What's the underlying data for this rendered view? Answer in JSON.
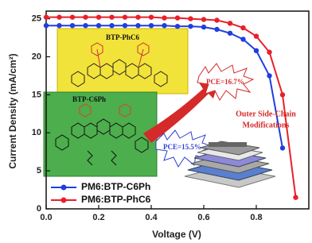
{
  "chart_data": {
    "type": "line",
    "x_label": "Voltage (V)",
    "y_label": "Current Density (mA/cm²)",
    "x": [
      0,
      0.05,
      0.1,
      0.15,
      0.2,
      0.25,
      0.3,
      0.35,
      0.4,
      0.45,
      0.5,
      0.55,
      0.6,
      0.65,
      0.7,
      0.75,
      0.8,
      0.85,
      0.9,
      0.95
    ],
    "series": [
      {
        "name": "PM6:BTP-C6Ph",
        "color": "#1f3fe0",
        "values": [
          24.1,
          24.1,
          24.1,
          24.1,
          24.1,
          24.1,
          24.1,
          24.1,
          24.1,
          24.1,
          24.0,
          24.0,
          23.9,
          23.6,
          23.1,
          22.3,
          20.8,
          17.5,
          8,
          null
        ]
      },
      {
        "name": "PM6:BTP-PhC6",
        "color": "#e8202a",
        "values": [
          25.2,
          25.2,
          25.2,
          25.2,
          25.2,
          25.2,
          25.2,
          25.2,
          25.2,
          25.1,
          25.1,
          25.0,
          24.9,
          24.8,
          24.4,
          23.8,
          22.7,
          20.6,
          15,
          1.5
        ]
      }
    ],
    "xlim": [
      0,
      1.0
    ],
    "ylim": [
      0,
      26
    ],
    "xticks": [
      {
        "value": 0,
        "label": "0.0"
      },
      {
        "value": 0.2,
        "label": "0.2"
      },
      {
        "value": 0.4,
        "label": "0.4"
      },
      {
        "value": 0.6,
        "label": "0.6"
      },
      {
        "value": 0.8,
        "label": "0.8"
      }
    ],
    "yticks": [
      0,
      5,
      10,
      15,
      20,
      25
    ],
    "legend": "lower left",
    "annotations": [
      "BTP-PhC6",
      "BTP-C6Ph",
      "PCE=16.7%",
      "PCE=15.5%",
      "Outer Side-Chain",
      "Modifications"
    ]
  }
}
